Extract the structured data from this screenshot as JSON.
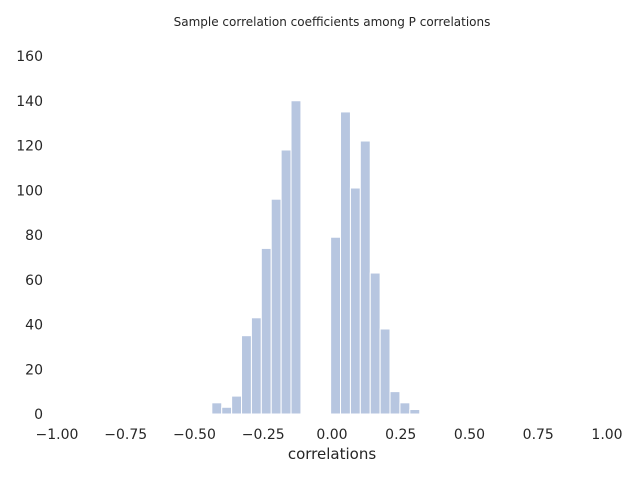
{
  "chart_data": {
    "type": "bar",
    "title": "Sample correlation coefficients among P correlations",
    "xlabel": "correlations",
    "ylabel": "",
    "xlim": [
      -1.0,
      1.0
    ],
    "ylim": [
      0,
      160
    ],
    "grid": false,
    "bar_color": "#b7c6e0",
    "bar_edge_color": "#ffffff",
    "bins": [
      {
        "x0": -0.437,
        "x1": -0.401,
        "count": 5
      },
      {
        "x0": -0.401,
        "x1": -0.365,
        "count": 3
      },
      {
        "x0": -0.365,
        "x1": -0.329,
        "count": 8
      },
      {
        "x0": -0.329,
        "x1": -0.293,
        "count": 35
      },
      {
        "x0": -0.293,
        "x1": -0.257,
        "count": 43
      },
      {
        "x0": -0.257,
        "x1": -0.221,
        "count": 74
      },
      {
        "x0": -0.221,
        "x1": -0.185,
        "count": 96
      },
      {
        "x0": -0.185,
        "x1": -0.149,
        "count": 118
      },
      {
        "x0": -0.149,
        "x1": -0.113,
        "count": 140
      },
      {
        "x0": -0.113,
        "x1": -0.077,
        "count": 0
      },
      {
        "x0": -0.077,
        "x1": -0.041,
        "count": 0
      },
      {
        "x0": -0.041,
        "x1": -0.005,
        "count": 0
      },
      {
        "x0": -0.005,
        "x1": 0.031,
        "count": 79
      },
      {
        "x0": 0.031,
        "x1": 0.067,
        "count": 135
      },
      {
        "x0": 0.067,
        "x1": 0.103,
        "count": 101
      },
      {
        "x0": 0.103,
        "x1": 0.139,
        "count": 122
      },
      {
        "x0": 0.139,
        "x1": 0.175,
        "count": 63
      },
      {
        "x0": 0.175,
        "x1": 0.211,
        "count": 38
      },
      {
        "x0": 0.211,
        "x1": 0.247,
        "count": 10
      },
      {
        "x0": 0.247,
        "x1": 0.283,
        "count": 5
      },
      {
        "x0": 0.283,
        "x1": 0.319,
        "count": 2
      }
    ],
    "x_ticks": [
      {
        "value": -1.0,
        "label": "−1.00"
      },
      {
        "value": -0.75,
        "label": "−0.75"
      },
      {
        "value": -0.5,
        "label": "−0.50"
      },
      {
        "value": -0.25,
        "label": "−0.25"
      },
      {
        "value": 0.0,
        "label": "0.00"
      },
      {
        "value": 0.25,
        "label": "0.25"
      },
      {
        "value": 0.5,
        "label": "0.50"
      },
      {
        "value": 0.75,
        "label": "0.75"
      },
      {
        "value": 1.0,
        "label": "1.00"
      }
    ],
    "y_ticks": [
      {
        "value": 0,
        "label": "0"
      },
      {
        "value": 20,
        "label": "20"
      },
      {
        "value": 40,
        "label": "40"
      },
      {
        "value": 60,
        "label": "60"
      },
      {
        "value": 80,
        "label": "80"
      },
      {
        "value": 100,
        "label": "100"
      },
      {
        "value": 120,
        "label": "120"
      },
      {
        "value": 140,
        "label": "140"
      },
      {
        "value": 160,
        "label": "160"
      }
    ]
  }
}
